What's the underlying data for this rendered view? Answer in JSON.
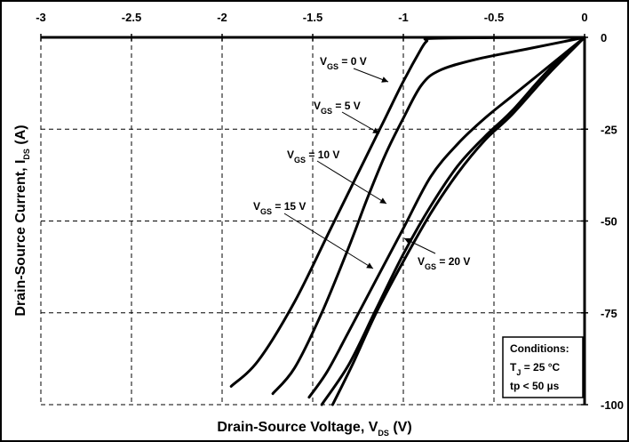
{
  "chart_data": {
    "type": "line",
    "xlabel": "Drain-Source Voltage, V",
    "xlabel_sub": "DS",
    "xlabel_unit": " (V)",
    "ylabel": "Drain-Source Current, I",
    "ylabel_sub": "DS",
    "ylabel_unit": " (A)",
    "xlim": [
      -3,
      0
    ],
    "ylim": [
      -100,
      0
    ],
    "x_ticks": [
      "-3",
      "-2.5",
      "-2",
      "-1.5",
      "-1",
      "-0.5",
      "0"
    ],
    "y_ticks": [
      "0",
      "-25",
      "-50",
      "-75",
      "-100"
    ],
    "grid": true,
    "series": [
      {
        "name": "VGS = 0 V",
        "label_main": "V",
        "label_sub": "GS",
        "label_rest": " = 0 V",
        "x": [
          0,
          -0.5,
          -0.85,
          -0.87,
          -0.9,
          -1.0,
          -1.1,
          -1.2,
          -1.4,
          -1.6,
          -1.8,
          -1.95
        ],
        "y": [
          0,
          -0.1,
          -0.3,
          -1,
          -3,
          -12,
          -22,
          -32,
          -52,
          -72,
          -88,
          -95
        ]
      },
      {
        "name": "VGS = 5 V",
        "label_main": "V",
        "label_sub": "GS",
        "label_rest": " = 5 V",
        "x": [
          0,
          -0.3,
          -0.6,
          -0.8,
          -0.9,
          -1.0,
          -1.1,
          -1.2,
          -1.3,
          -1.45,
          -1.6,
          -1.72
        ],
        "y": [
          0,
          -3,
          -6,
          -9,
          -13,
          -22,
          -32,
          -44,
          -57,
          -75,
          -90,
          -97
        ]
      },
      {
        "name": "VGS = 10 V",
        "label_main": "V",
        "label_sub": "GS",
        "label_rest": " = 10 V",
        "x": [
          0,
          -0.2,
          -0.4,
          -0.55,
          -0.7,
          -0.85,
          -1.0,
          -1.15,
          -1.3,
          -1.42,
          -1.52
        ],
        "y": [
          0,
          -8,
          -16,
          -22,
          -29,
          -38,
          -52,
          -66,
          -80,
          -91,
          -98
        ]
      },
      {
        "name": "VGS = 15 V",
        "label_main": "V",
        "label_sub": "GS",
        "label_rest": " = 15 V",
        "x": [
          0,
          -0.2,
          -0.4,
          -0.55,
          -0.7,
          -0.85,
          -1.0,
          -1.15,
          -1.3,
          -1.45
        ],
        "y": [
          0,
          -9,
          -20,
          -27,
          -35,
          -46,
          -59,
          -74,
          -89,
          -100
        ]
      },
      {
        "name": "VGS = 20 V",
        "label_main": "V",
        "label_sub": "GS",
        "label_rest": " = 20 V",
        "x": [
          0,
          -0.2,
          -0.4,
          -0.55,
          -0.7,
          -0.85,
          -1.0,
          -1.15,
          -1.28,
          -1.39
        ],
        "y": [
          0,
          -10,
          -21,
          -28,
          -37,
          -48,
          -61,
          -75,
          -89,
          -100
        ]
      }
    ],
    "conditions": {
      "title": "Conditions:",
      "line1_main": "T",
      "line1_sub": "J",
      "line1_rest": " = 25 °C",
      "line2": "tp < 50 µs"
    }
  }
}
